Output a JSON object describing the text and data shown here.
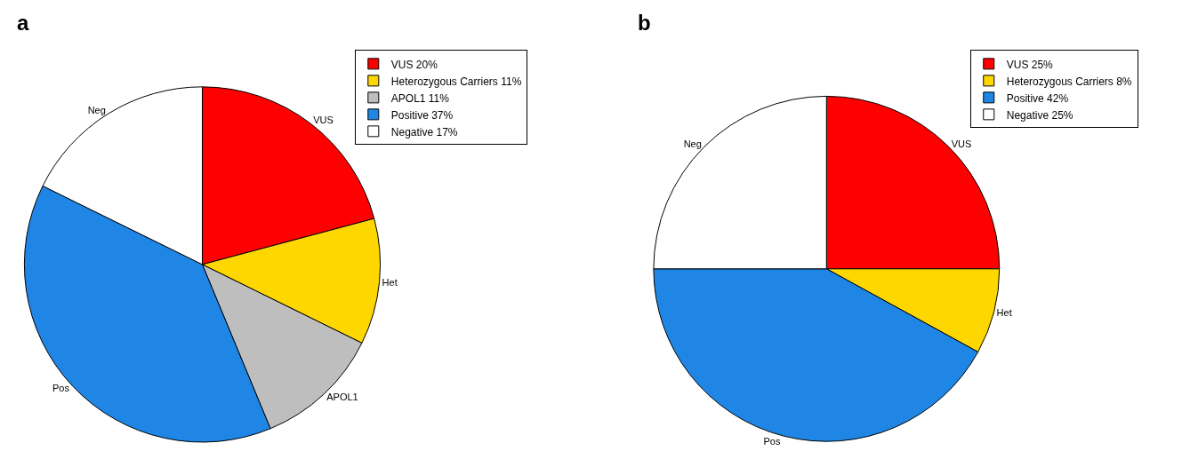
{
  "chart_data": [
    {
      "type": "pie",
      "title": "a",
      "categories": [
        "VUS 20%",
        "Heterozygous Carriers 11%",
        "APOL1 11%",
        "Positive 37%",
        "Negative 17%"
      ],
      "values": [
        20,
        11,
        11,
        37,
        17
      ],
      "value_labels": [
        "VUS",
        "Het",
        "APOL1",
        "Pos",
        "Neg"
      ],
      "colors": [
        "#ff0000",
        "#ffd700",
        "#bebebe",
        "#1f86e6",
        "#ffffff"
      ],
      "legend": "top right"
    },
    {
      "type": "pie",
      "title": "b",
      "categories": [
        "VUS 25%",
        "Heterozygous Carriers 8%",
        "Positive 42%",
        "Negative 25%"
      ],
      "values": [
        25,
        8,
        42,
        25
      ],
      "value_labels": [
        "VUS",
        "Het",
        "Pos",
        "Neg"
      ],
      "colors": [
        "#ff0000",
        "#ffd700",
        "#1f86e6",
        "#ffffff"
      ],
      "legend": "top right"
    }
  ]
}
